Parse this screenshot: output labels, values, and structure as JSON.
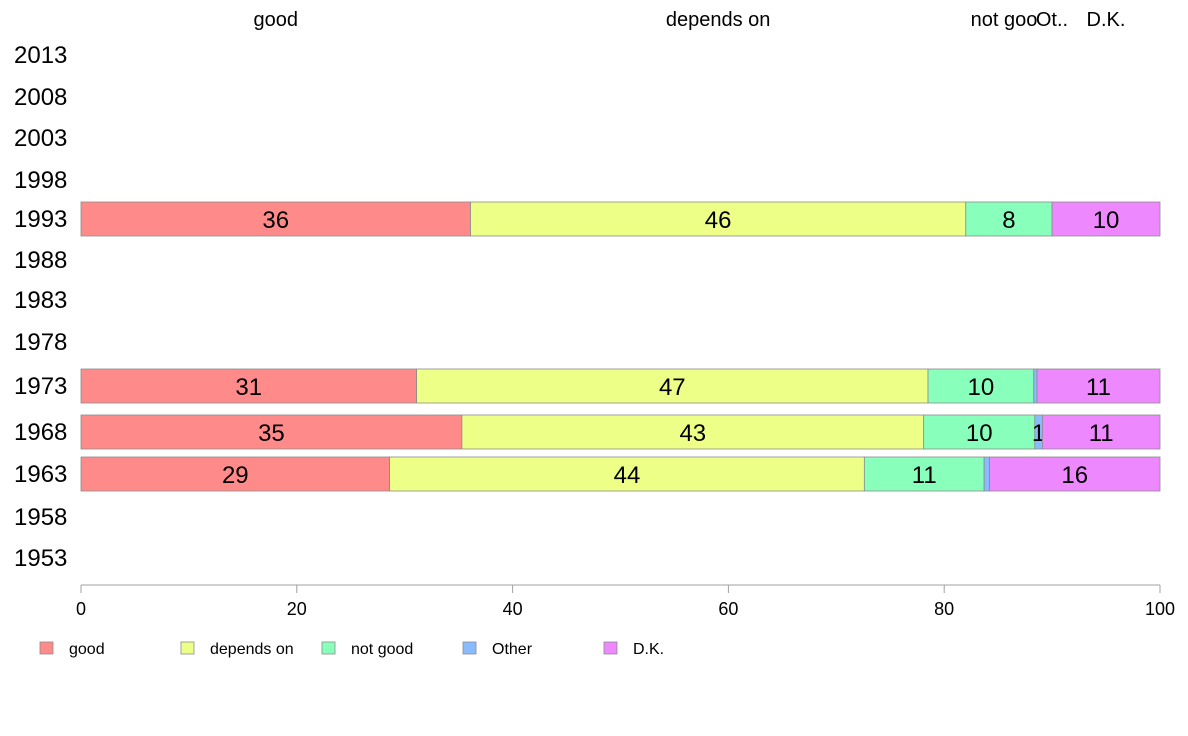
{
  "chart_data": {
    "type": "bar",
    "orientation": "horizontal",
    "stacked": true,
    "categories": [
      "2013",
      "2008",
      "2003",
      "1998",
      "1993",
      "1988",
      "1983",
      "1978",
      "1973",
      "1968",
      "1963",
      "1958",
      "1953"
    ],
    "series": [
      {
        "name": "good",
        "color": "#FF8A8A",
        "values": [
          null,
          null,
          null,
          null,
          36.1,
          null,
          null,
          null,
          31.1,
          35.3,
          28.6,
          null,
          null
        ]
      },
      {
        "name": "depends on",
        "color": "#EEFF88",
        "values": [
          null,
          null,
          null,
          null,
          45.9,
          null,
          null,
          null,
          47.4,
          42.8,
          44.0,
          null,
          null
        ]
      },
      {
        "name": "not good",
        "color": "#88FFBB",
        "values": [
          null,
          null,
          null,
          null,
          8.0,
          null,
          null,
          null,
          9.8,
          10.3,
          11.1,
          null,
          null
        ]
      },
      {
        "name": "Other",
        "color": "#88BBFF",
        "values": [
          null,
          null,
          null,
          null,
          0.0,
          null,
          null,
          null,
          0.3,
          0.7,
          0.5,
          null,
          null
        ]
      },
      {
        "name": "D.K.",
        "color": "#EE88FF",
        "values": [
          null,
          null,
          null,
          null,
          10.0,
          null,
          null,
          null,
          11.4,
          10.9,
          15.8,
          null,
          null
        ]
      }
    ],
    "data_labels": {
      "1993": [
        "36",
        "46",
        "8",
        "",
        "10"
      ],
      "1973": [
        "31",
        "47",
        "10",
        "",
        "11"
      ],
      "1968": [
        "35",
        "43",
        "10",
        "1",
        "11"
      ],
      "1963": [
        "29",
        "44",
        "11",
        "",
        "16"
      ]
    },
    "top_labels": [
      "good",
      "depends on",
      "not goo",
      "Ot..",
      "D.K."
    ],
    "xlim": [
      0,
      100
    ],
    "xticks": [
      "0",
      "20",
      "40",
      "60",
      "80",
      "100"
    ],
    "legend": [
      "good",
      "depends on",
      "not good",
      "Other",
      "D.K."
    ],
    "legend_placement": "bottom-left",
    "title": "",
    "xlabel": "",
    "ylabel": ""
  }
}
